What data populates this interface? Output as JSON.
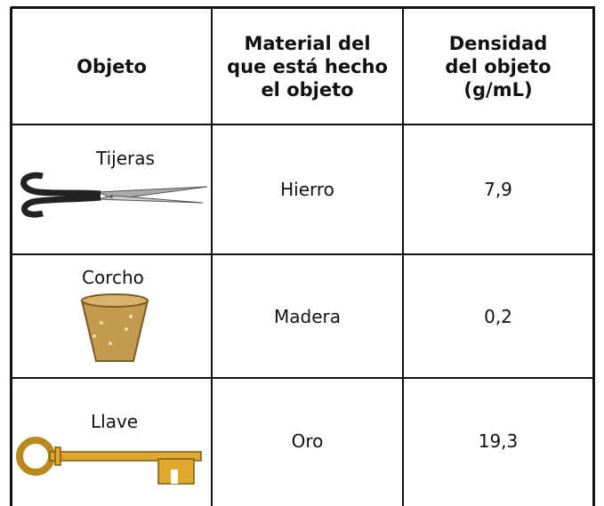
{
  "table": {
    "header": [
      [
        "Objeto"
      ],
      [
        "Material del",
        "que está hecho",
        "el objeto"
      ],
      [
        "Densidad",
        "del objeto",
        "(g/mL)"
      ]
    ],
    "rows": [
      [
        "Tijeras",
        "Hierro",
        "7,9"
      ],
      [
        "Corcho",
        "Madera",
        "0,2"
      ],
      [
        "Llave",
        "Oro",
        "19,3"
      ]
    ]
  }
}
